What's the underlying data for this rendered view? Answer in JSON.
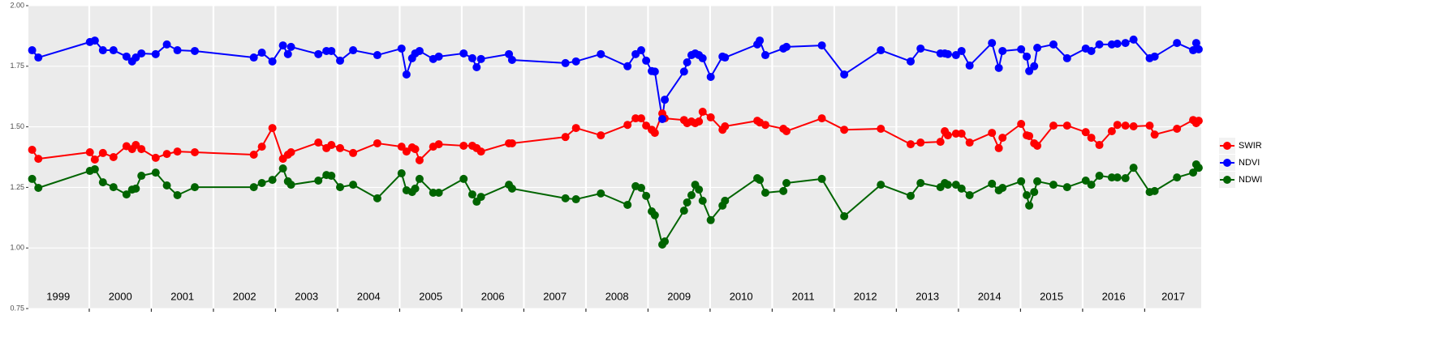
{
  "chart_data": {
    "type": "line",
    "x": [
      1999.08,
      1999.18,
      2000.01,
      2000.09,
      2000.22,
      2000.39,
      2000.6,
      2000.69,
      2000.75,
      2000.84,
      2001.07,
      2001.25,
      2001.42,
      2001.7,
      2002.65,
      2002.78,
      2002.95,
      2003.12,
      2003.2,
      2003.25,
      2003.69,
      2003.82,
      2003.9,
      2004.04,
      2004.25,
      2004.64,
      2005.03,
      2005.11,
      2005.2,
      2005.25,
      2005.32,
      2005.54,
      2005.63,
      2006.03,
      2006.17,
      2006.24,
      2006.31,
      2006.76,
      2006.81,
      2007.67,
      2007.84,
      2008.24,
      2008.67,
      2008.8,
      2008.89,
      2008.97,
      2009.06,
      2009.11,
      2009.23,
      2009.27,
      2009.58,
      2009.63,
      2009.7,
      2009.76,
      2009.82,
      2009.88,
      2010.01,
      2010.2,
      2010.24,
      2010.76,
      2010.8,
      2010.89,
      2011.18,
      2011.23,
      2011.8,
      2012.16,
      2012.75,
      2013.23,
      2013.39,
      2013.71,
      2013.78,
      2013.83,
      2013.96,
      2014.05,
      2014.18,
      2014.54,
      2014.65,
      2014.71,
      2015.01,
      2015.1,
      2015.14,
      2015.22,
      2015.27,
      2015.53,
      2015.75,
      2016.05,
      2016.14,
      2016.27,
      2016.47,
      2016.56,
      2016.69,
      2016.82,
      2017.08,
      2017.16,
      2017.52,
      2017.78,
      2017.83,
      2017.87
    ],
    "series": [
      {
        "name": "SWIR",
        "color": "#ff0000",
        "values": [
          1.405,
          1.368,
          1.395,
          1.365,
          1.392,
          1.375,
          1.42,
          1.408,
          1.425,
          1.408,
          1.372,
          1.388,
          1.398,
          1.395,
          1.385,
          1.418,
          1.495,
          1.368,
          1.385,
          1.395,
          1.435,
          1.412,
          1.425,
          1.412,
          1.392,
          1.432,
          1.418,
          1.398,
          1.415,
          1.408,
          1.362,
          1.418,
          1.428,
          1.422,
          1.422,
          1.412,
          1.398,
          1.432,
          1.432,
          1.458,
          1.495,
          1.465,
          1.508,
          1.535,
          1.535,
          1.505,
          1.488,
          1.475,
          1.555,
          1.535,
          1.528,
          1.515,
          1.522,
          1.515,
          1.522,
          1.562,
          1.539,
          1.488,
          1.502,
          1.525,
          1.518,
          1.508,
          1.492,
          1.482,
          1.535,
          1.488,
          1.492,
          1.428,
          1.435,
          1.438,
          1.482,
          1.465,
          1.472,
          1.472,
          1.435,
          1.475,
          1.412,
          1.455,
          1.512,
          1.465,
          1.462,
          1.432,
          1.422,
          1.505,
          1.505,
          1.478,
          1.455,
          1.425,
          1.482,
          1.508,
          1.505,
          1.502,
          1.505,
          1.468,
          1.492,
          1.528,
          1.515,
          1.525
        ]
      },
      {
        "name": "NDVI",
        "color": "#0000ff",
        "values": [
          1.816,
          1.786,
          1.85,
          1.856,
          1.816,
          1.816,
          1.79,
          1.77,
          1.786,
          1.803,
          1.8,
          1.84,
          1.816,
          1.813,
          1.786,
          1.806,
          1.77,
          1.836,
          1.8,
          1.83,
          1.8,
          1.813,
          1.813,
          1.773,
          1.816,
          1.796,
          1.823,
          1.716,
          1.783,
          1.803,
          1.813,
          1.78,
          1.79,
          1.803,
          1.783,
          1.746,
          1.78,
          1.8,
          1.776,
          1.763,
          1.77,
          1.8,
          1.75,
          1.8,
          1.816,
          1.773,
          1.73,
          1.728,
          1.532,
          1.612,
          1.728,
          1.766,
          1.796,
          1.803,
          1.796,
          1.783,
          1.706,
          1.79,
          1.786,
          1.84,
          1.856,
          1.796,
          1.823,
          1.83,
          1.836,
          1.716,
          1.816,
          1.77,
          1.823,
          1.803,
          1.803,
          1.8,
          1.796,
          1.813,
          1.753,
          1.846,
          1.743,
          1.813,
          1.82,
          1.79,
          1.73,
          1.75,
          1.826,
          1.84,
          1.783,
          1.823,
          1.813,
          1.84,
          1.84,
          1.843,
          1.846,
          1.86,
          1.783,
          1.79,
          1.846,
          1.816,
          1.846,
          1.82
        ]
      },
      {
        "name": "NDWI",
        "color": "#006400",
        "values": [
          1.285,
          1.248,
          1.318,
          1.325,
          1.271,
          1.251,
          1.221,
          1.241,
          1.245,
          1.298,
          1.311,
          1.258,
          1.218,
          1.251,
          1.251,
          1.268,
          1.281,
          1.328,
          1.275,
          1.261,
          1.278,
          1.301,
          1.298,
          1.251,
          1.261,
          1.205,
          1.308,
          1.238,
          1.231,
          1.245,
          1.285,
          1.228,
          1.228,
          1.285,
          1.221,
          1.191,
          1.211,
          1.261,
          1.245,
          1.205,
          1.201,
          1.225,
          1.178,
          1.255,
          1.248,
          1.215,
          1.151,
          1.135,
          1.014,
          1.027,
          1.154,
          1.188,
          1.218,
          1.261,
          1.241,
          1.195,
          1.115,
          1.175,
          1.195,
          1.288,
          1.281,
          1.228,
          1.235,
          1.268,
          1.285,
          1.131,
          1.261,
          1.215,
          1.268,
          1.251,
          1.268,
          1.261,
          1.261,
          1.245,
          1.218,
          1.265,
          1.238,
          1.248,
          1.275,
          1.218,
          1.175,
          1.231,
          1.275,
          1.261,
          1.251,
          1.278,
          1.261,
          1.298,
          1.291,
          1.291,
          1.288,
          1.331,
          1.231,
          1.235,
          1.291,
          1.311,
          1.345,
          1.331
        ]
      }
    ],
    "xlim": [
      1999.02,
      2017.91
    ],
    "xticks": [
      2000,
      2001,
      2002,
      2003,
      2004,
      2005,
      2006,
      2007,
      2008,
      2009,
      2010,
      2011,
      2012,
      2013,
      2014,
      2015,
      2016,
      2017
    ],
    "year_labels": [
      {
        "value": 1999.5,
        "label": "1999"
      },
      {
        "value": 2000.5,
        "label": "2000"
      },
      {
        "value": 2001.5,
        "label": "2001"
      },
      {
        "value": 2002.5,
        "label": "2002"
      },
      {
        "value": 2003.5,
        "label": "2003"
      },
      {
        "value": 2004.5,
        "label": "2004"
      },
      {
        "value": 2005.5,
        "label": "2005"
      },
      {
        "value": 2006.5,
        "label": "2006"
      },
      {
        "value": 2007.5,
        "label": "2007"
      },
      {
        "value": 2008.5,
        "label": "2008"
      },
      {
        "value": 2009.5,
        "label": "2009"
      },
      {
        "value": 2010.5,
        "label": "2010"
      },
      {
        "value": 2011.5,
        "label": "2011"
      },
      {
        "value": 2012.5,
        "label": "2012"
      },
      {
        "value": 2013.5,
        "label": "2013"
      },
      {
        "value": 2014.5,
        "label": "2014"
      },
      {
        "value": 2015.5,
        "label": "2015"
      },
      {
        "value": 2016.5,
        "label": "2016"
      },
      {
        "value": 2017.46,
        "label": "2017"
      }
    ],
    "ylim": [
      0.75,
      2.0
    ],
    "yticks": [
      0.75,
      {
        "value": 1.0,
        "label": "1.00"
      },
      1.25,
      {
        "value": 1.5,
        "label": "1.50"
      },
      1.75,
      {
        "value": 2.0,
        "label": "2.00"
      }
    ],
    "grid": true,
    "legend_position": "right"
  }
}
